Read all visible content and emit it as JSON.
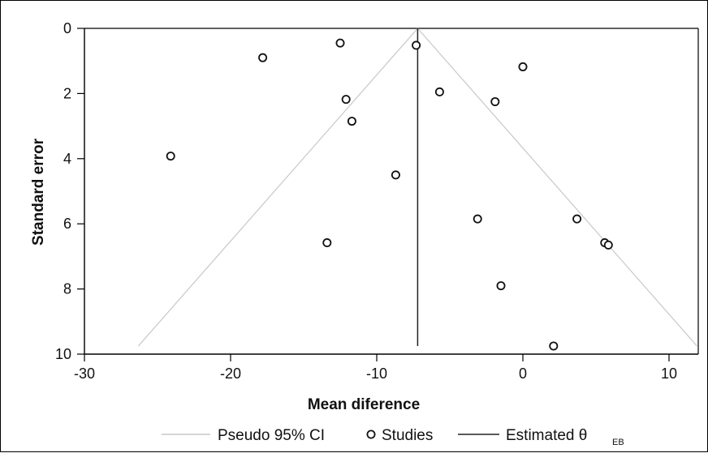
{
  "chart_data": {
    "type": "scatter",
    "subtype": "funnel plot",
    "xlabel": "Mean diference",
    "ylabel": "Standard error",
    "xlim": [
      -30,
      12
    ],
    "ylim": [
      0,
      10
    ],
    "y_reversed": true,
    "xticks": [
      "-30",
      "-20",
      "-10",
      "0",
      "10"
    ],
    "yticks": [
      "0",
      "2",
      "4",
      "6",
      "8",
      "10"
    ],
    "estimated_effect": -7.2,
    "funnel_se_max": 9.75,
    "points": [
      {
        "x": -12.5,
        "y": 0.45
      },
      {
        "x": -7.3,
        "y": 0.52
      },
      {
        "x": -17.8,
        "y": 0.9
      },
      {
        "x": 0.0,
        "y": 1.18
      },
      {
        "x": -5.7,
        "y": 1.95
      },
      {
        "x": -12.1,
        "y": 2.18
      },
      {
        "x": -1.9,
        "y": 2.25
      },
      {
        "x": -11.7,
        "y": 2.85
      },
      {
        "x": -24.1,
        "y": 3.92
      },
      {
        "x": -8.7,
        "y": 4.5
      },
      {
        "x": -3.1,
        "y": 5.85
      },
      {
        "x": 3.7,
        "y": 5.85
      },
      {
        "x": -13.4,
        "y": 6.58
      },
      {
        "x": 5.6,
        "y": 6.58
      },
      {
        "x": 5.85,
        "y": 6.65
      },
      {
        "x": -1.5,
        "y": 7.9
      },
      {
        "x": 2.1,
        "y": 9.75
      }
    ],
    "legend": {
      "ci_label": "Pseudo 95% CI",
      "studies_label": "Studies",
      "estimate_label_main": "Estimated θ",
      "estimate_label_sub": "EB"
    },
    "colors": {
      "ci_line": "#c8c8c8",
      "estimate_line": "#222222",
      "marker_stroke": "#111111",
      "axis": "#000000"
    }
  }
}
